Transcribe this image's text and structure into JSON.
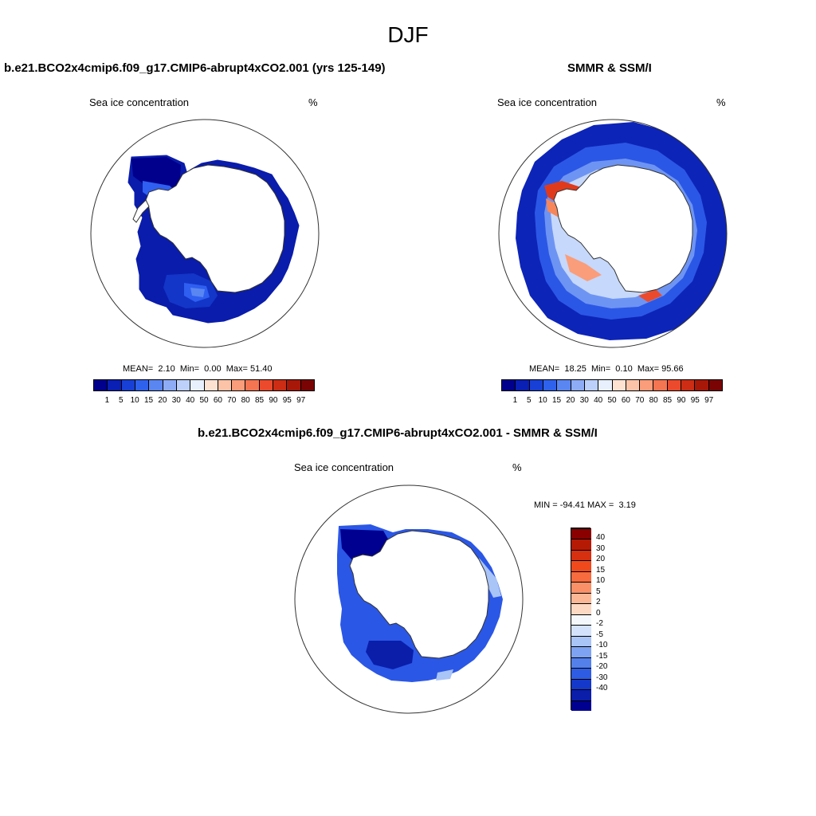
{
  "season": "DJF",
  "panels": {
    "model": {
      "title": "b.e21.BCO2x4cmip6.f09_g17.CMIP6-abrupt4xCO2.001 (yrs 125-149)",
      "variable": "Sea ice concentration",
      "units": "%",
      "stats": {
        "mean_label": "MEAN=",
        "mean": "2.10",
        "min_label": "Min=",
        "min": "0.00",
        "max_label": "Max=",
        "max": "51.40"
      }
    },
    "obs": {
      "title": "SMMR & SSM/I",
      "variable": "Sea ice concentration",
      "units": "%",
      "stats": {
        "mean_label": "MEAN=",
        "mean": "18.25",
        "min_label": "Min=",
        "min": "0.10",
        "max_label": "Max=",
        "max": "95.66"
      }
    },
    "diff": {
      "title": "b.e21.BCO2x4cmip6.f09_g17.CMIP6-abrupt4xCO2.001 - SMMR & SSM/I",
      "variable": "Sea ice concentration",
      "units": "%",
      "minmax": {
        "min_label": "MIN =",
        "min": "-94.41",
        "max_label": "MAX =",
        "max": "3.19"
      }
    }
  },
  "concentration_colorbar": {
    "labels": [
      "1",
      "5",
      "10",
      "15",
      "20",
      "30",
      "40",
      "50",
      "60",
      "70",
      "80",
      "85",
      "90",
      "95",
      "97"
    ],
    "colors": [
      "#00008c",
      "#0a1fb3",
      "#1840d6",
      "#2f62ec",
      "#5a86f2",
      "#8eacf6",
      "#bcd0fa",
      "#e8f0fe",
      "#fde2d2",
      "#fcc3a8",
      "#fa9d7a",
      "#f47551",
      "#ec4a2c",
      "#cc2d14",
      "#a81808",
      "#7a0404"
    ]
  },
  "difference_colorbar": {
    "labels": [
      "40",
      "30",
      "20",
      "15",
      "10",
      "5",
      "2",
      "0",
      "-2",
      "-5",
      "-10",
      "-15",
      "-20",
      "-30",
      "-40"
    ],
    "colors": [
      "#8a0000",
      "#b51a05",
      "#d63010",
      "#f04a1c",
      "#f76b3e",
      "#fa9068",
      "#fcb896",
      "#fdd9c4",
      "#f4f8fc",
      "#d4e3fb",
      "#a9c4f7",
      "#7ea3f2",
      "#5480ec",
      "#2e5ce3",
      "#1438c9",
      "#0a1eaa",
      "#000090"
    ]
  },
  "map_fields": {
    "model": [
      {
        "type": "band",
        "level": 4,
        "angle": [
          0,
          360
        ],
        "r": [
          0,
          0
        ],
        "note": ""
      },
      {
        "type": "blob",
        "level": 2
      },
      {
        "type": "blob",
        "level": 3
      }
    ]
  }
}
